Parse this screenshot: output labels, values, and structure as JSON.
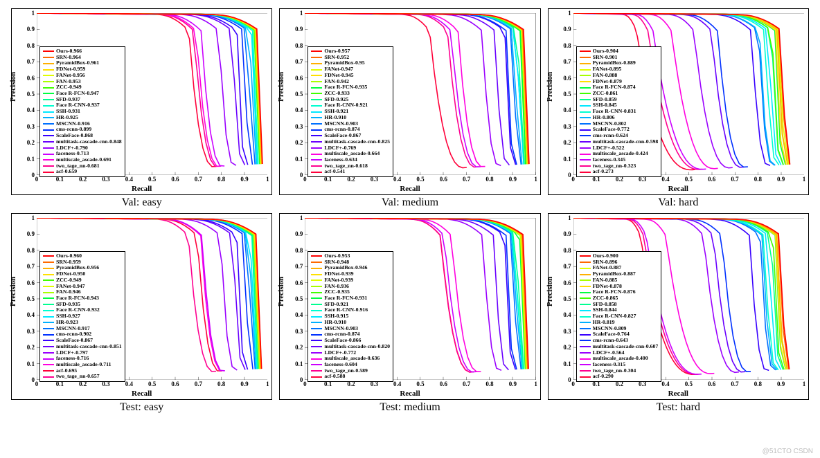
{
  "layout": {
    "rows": 2,
    "cols": 3
  },
  "axes": {
    "xlabel": "Recall",
    "ylabel": "Precision",
    "xlim": [
      0,
      1
    ],
    "ylim": [
      0,
      1
    ],
    "ticks": [
      0,
      0.1,
      0.2,
      0.3,
      0.4,
      0.5,
      0.6,
      0.7,
      0.8,
      0.9,
      1
    ],
    "tick_fontsize": 9,
    "label_fontsize": 11,
    "axis_color": "#000000",
    "background": "#ffffff",
    "line_width": 1.6
  },
  "legend": {
    "fontsize": 7.8,
    "border_color": "#000000",
    "swatch_width": 16
  },
  "watermark": "@51CTO  CSDN",
  "curve_styles": {
    "Ours": {
      "color": "#ff0000"
    },
    "SRN": {
      "color": "#ff6a00"
    },
    "PyramidBox": {
      "color": "#ffb000"
    },
    "FDNet": {
      "color": "#ffe000"
    },
    "FANet": {
      "color": "#e0ff00"
    },
    "FAN": {
      "color": "#a8ff00"
    },
    "ZCC": {
      "color": "#40ff00"
    },
    "Face R-FCN": {
      "color": "#00ff40"
    },
    "SFD": {
      "color": "#00ff90"
    },
    "Face R-CNN": {
      "color": "#00ffd0"
    },
    "SSH": {
      "color": "#00e8ff"
    },
    "HR": {
      "color": "#00b0ff"
    },
    "MSCNN": {
      "color": "#0070ff"
    },
    "cms-rcnn": {
      "color": "#0030ff"
    },
    "ScaleFace": {
      "color": "#3800ff"
    },
    "multitask-cascade-cnn": {
      "color": "#6a00ff"
    },
    "LDCF+": {
      "color": "#9a00ff"
    },
    "faceness": {
      "color": "#cc00ff"
    },
    "multiscale_ascade": {
      "color": "#ff00e0"
    },
    "two_tage_nn": {
      "color": "#ff0090"
    },
    "acf": {
      "color": "#ff003a"
    }
  },
  "panels": [
    {
      "subtitle": "Val: easy",
      "series": [
        {
          "method": "Ours",
          "ap": "0.966"
        },
        {
          "method": "SRN",
          "ap": "0.964"
        },
        {
          "method": "PyramidBox",
          "ap": "0.961"
        },
        {
          "method": "FDNet",
          "ap": "0.959"
        },
        {
          "method": "FANet",
          "ap": "0.956"
        },
        {
          "method": "FAN",
          "ap": "0.953"
        },
        {
          "method": "ZCC",
          "ap": "0.949"
        },
        {
          "method": "Face R-FCN",
          "ap": "0.947"
        },
        {
          "method": "SFD",
          "ap": "0.937"
        },
        {
          "method": "Face R-CNN",
          "ap": "0.937"
        },
        {
          "method": "SSH",
          "ap": "0.931"
        },
        {
          "method": "HR",
          "ap": "0.925"
        },
        {
          "method": "MSCNN",
          "ap": "0.916"
        },
        {
          "method": "cms-rcnn",
          "ap": "0.899"
        },
        {
          "method": "ScaleFace",
          "ap": "0.868"
        },
        {
          "method": "multitask-cascade-cnn",
          "ap": "0.848"
        },
        {
          "method": "LDCF+",
          "ap": "0.790"
        },
        {
          "method": "faceness",
          "ap": "0.713"
        },
        {
          "method": "multiscale_ascade",
          "ap": "0.691"
        },
        {
          "method": "two_tage_nn",
          "ap": "0.681"
        },
        {
          "method": "acf",
          "ap": "0.659"
        }
      ]
    },
    {
      "subtitle": "Val: medium",
      "series": [
        {
          "method": "Ours",
          "ap": "0.957"
        },
        {
          "method": "SRN",
          "ap": "0.952"
        },
        {
          "method": "PyramidBox",
          "ap": "0.95"
        },
        {
          "method": "FANet",
          "ap": "0.947"
        },
        {
          "method": "FDNet",
          "ap": "0.945"
        },
        {
          "method": "FAN",
          "ap": "0.942"
        },
        {
          "method": "Face R-FCN",
          "ap": "0.935"
        },
        {
          "method": "ZCC",
          "ap": "0.933"
        },
        {
          "method": "SFD",
          "ap": "0.925"
        },
        {
          "method": "Face R-CNN",
          "ap": "0.921"
        },
        {
          "method": "SSH",
          "ap": "0.921"
        },
        {
          "method": "HR",
          "ap": "0.910"
        },
        {
          "method": "MSCNN",
          "ap": "0.903"
        },
        {
          "method": "cms-rcnn",
          "ap": "0.874"
        },
        {
          "method": "ScaleFace",
          "ap": "0.867"
        },
        {
          "method": "multitask-cascade-cnn",
          "ap": "0.825"
        },
        {
          "method": "LDCF+",
          "ap": "0.769"
        },
        {
          "method": "multiscale_ascade",
          "ap": "0.664"
        },
        {
          "method": "faceness",
          "ap": "0.634"
        },
        {
          "method": "two_tage_nn",
          "ap": "0.618"
        },
        {
          "method": "acf",
          "ap": "0.541"
        }
      ]
    },
    {
      "subtitle": "Val: hard",
      "series": [
        {
          "method": "Ours",
          "ap": "0.904"
        },
        {
          "method": "SRN",
          "ap": "0.901"
        },
        {
          "method": "PyramidBox",
          "ap": "0.889"
        },
        {
          "method": "FANet",
          "ap": "0.895"
        },
        {
          "method": "FAN",
          "ap": "0.888"
        },
        {
          "method": "FDNet",
          "ap": "0.879"
        },
        {
          "method": "Face R-FCN",
          "ap": "0.874"
        },
        {
          "method": "ZCC",
          "ap": "0.861"
        },
        {
          "method": "SFD",
          "ap": "0.859"
        },
        {
          "method": "SSH",
          "ap": "0.845"
        },
        {
          "method": "Face R-CNN",
          "ap": "0.831"
        },
        {
          "method": "HR",
          "ap": "0.806"
        },
        {
          "method": "MSCNN",
          "ap": "0.802"
        },
        {
          "method": "ScaleFace",
          "ap": "0.772"
        },
        {
          "method": "cms-rcnn",
          "ap": "0.624"
        },
        {
          "method": "multitask-cascade-cnn",
          "ap": "0.598"
        },
        {
          "method": "LDCF+",
          "ap": "0.522"
        },
        {
          "method": "multiscale_ascade",
          "ap": "0.424"
        },
        {
          "method": "faceness",
          "ap": "0.345"
        },
        {
          "method": "two_tage_nn",
          "ap": "0.323"
        },
        {
          "method": "acf",
          "ap": "0.273"
        }
      ]
    },
    {
      "subtitle": "Test: easy",
      "series": [
        {
          "method": "Ours",
          "ap": "0.960"
        },
        {
          "method": "SRN",
          "ap": "0.959"
        },
        {
          "method": "PyramidBox",
          "ap": "0.956"
        },
        {
          "method": "FDNet",
          "ap": "0.950"
        },
        {
          "method": "ZCC",
          "ap": "0.949"
        },
        {
          "method": "FANet",
          "ap": "0.947"
        },
        {
          "method": "FAN",
          "ap": "0.946"
        },
        {
          "method": "Face R-FCN",
          "ap": "0.943"
        },
        {
          "method": "SFD",
          "ap": "0.935"
        },
        {
          "method": "Face R-CNN",
          "ap": "0.932"
        },
        {
          "method": "SSH",
          "ap": "0.927"
        },
        {
          "method": "HR",
          "ap": "0.923"
        },
        {
          "method": "MSCNN",
          "ap": "0.917"
        },
        {
          "method": "cms-rcnn",
          "ap": "0.902"
        },
        {
          "method": "ScaleFace",
          "ap": "0.867"
        },
        {
          "method": "multitask-cascade-cnn",
          "ap": "0.851"
        },
        {
          "method": "LDCF+",
          "ap": "0.797"
        },
        {
          "method": "faceness",
          "ap": "0.716"
        },
        {
          "method": "multiscale_ascade",
          "ap": "0.711"
        },
        {
          "method": "acf",
          "ap": "0.695"
        },
        {
          "method": "two_tage_nn",
          "ap": "0.657"
        }
      ]
    },
    {
      "subtitle": "Test: medium",
      "series": [
        {
          "method": "Ours",
          "ap": "0.953"
        },
        {
          "method": "SRN",
          "ap": "0.948"
        },
        {
          "method": "PyramidBox",
          "ap": "0.946"
        },
        {
          "method": "FDNet",
          "ap": "0.939"
        },
        {
          "method": "FANet",
          "ap": "0.939"
        },
        {
          "method": "FAN",
          "ap": "0.936"
        },
        {
          "method": "ZCC",
          "ap": "0.935"
        },
        {
          "method": "Face R-FCN",
          "ap": "0.931"
        },
        {
          "method": "SFD",
          "ap": "0.921"
        },
        {
          "method": "Face R-CNN",
          "ap": "0.916"
        },
        {
          "method": "SSH",
          "ap": "0.915"
        },
        {
          "method": "HR",
          "ap": "0.910"
        },
        {
          "method": "MSCNN",
          "ap": "0.903"
        },
        {
          "method": "cms-rcnn",
          "ap": "0.874"
        },
        {
          "method": "ScaleFace",
          "ap": "0.866"
        },
        {
          "method": "multitask-cascade-cnn",
          "ap": "0.820"
        },
        {
          "method": "LDCF+",
          "ap": "0.772"
        },
        {
          "method": "multiscale_ascade",
          "ap": "0.636"
        },
        {
          "method": "faceness",
          "ap": "0.604"
        },
        {
          "method": "two_tage_nn",
          "ap": "0.589"
        },
        {
          "method": "acf",
          "ap": "0.588"
        }
      ]
    },
    {
      "subtitle": "Test: hard",
      "series": [
        {
          "method": "Ours",
          "ap": "0.900"
        },
        {
          "method": "SRN",
          "ap": "0.896"
        },
        {
          "method": "FANet",
          "ap": "0.887"
        },
        {
          "method": "PyramidBox",
          "ap": "0.887"
        },
        {
          "method": "FAN",
          "ap": "0.885"
        },
        {
          "method": "FDNet",
          "ap": "0.878"
        },
        {
          "method": "Face R-FCN",
          "ap": "0.876"
        },
        {
          "method": "ZCC",
          "ap": "0.865"
        },
        {
          "method": "SFD",
          "ap": "0.858"
        },
        {
          "method": "SSH",
          "ap": "0.844"
        },
        {
          "method": "Face R-CNN",
          "ap": "0.827"
        },
        {
          "method": "HR",
          "ap": "0.819"
        },
        {
          "method": "MSCNN",
          "ap": "0.809"
        },
        {
          "method": "ScaleFace",
          "ap": "0.764"
        },
        {
          "method": "cms-rcnn",
          "ap": "0.643"
        },
        {
          "method": "multitask-cascade-cnn",
          "ap": "0.607"
        },
        {
          "method": "LDCF+",
          "ap": "0.564"
        },
        {
          "method": "multiscale_ascade",
          "ap": "0.400"
        },
        {
          "method": "faceness",
          "ap": "0.315"
        },
        {
          "method": "two_tage_nn",
          "ap": "0.304"
        },
        {
          "method": "acf",
          "ap": "0.290"
        }
      ]
    }
  ]
}
